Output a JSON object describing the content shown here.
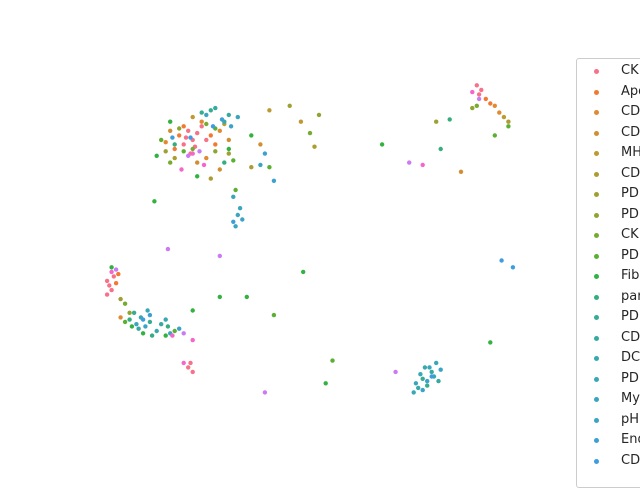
{
  "chart_data": {
    "type": "scatter",
    "title": "",
    "xlabel": "",
    "ylabel": "",
    "axes_visible": false,
    "grid": false,
    "legend_position": "right",
    "series": [
      {
        "name": "CK",
        "color": "#f77189",
        "points": [
          [
            -3.1,
            2.9
          ],
          [
            -3.0,
            2.7
          ],
          [
            -2.9,
            2.85
          ],
          [
            -3.2,
            2.6
          ],
          [
            -2.8,
            3.0
          ],
          [
            -3.05,
            2.4
          ],
          [
            -2.95,
            2.55
          ],
          [
            -3.15,
            2.75
          ],
          [
            -2.7,
            2.7
          ],
          [
            -4.9,
            -0.4
          ],
          [
            -4.8,
            -0.6
          ],
          [
            -4.85,
            -0.5
          ],
          [
            -4.75,
            -0.3
          ],
          [
            -4.9,
            -0.7
          ],
          [
            3.3,
            3.9
          ],
          [
            3.4,
            3.8
          ],
          [
            3.35,
            3.7
          ],
          [
            -3.1,
            -2.3
          ],
          [
            -3.0,
            -2.4
          ],
          [
            -3.05,
            -2.2
          ]
        ]
      },
      {
        "name": "Apo",
        "color": "#f37932",
        "points": [
          [
            -3.3,
            2.8
          ],
          [
            -3.2,
            3.0
          ],
          [
            -2.6,
            2.8
          ],
          [
            -2.5,
            2.6
          ],
          [
            -3.4,
            2.5
          ],
          [
            -4.7,
            -0.45
          ],
          [
            -4.65,
            -0.25
          ],
          [
            3.6,
            3.5
          ],
          [
            3.5,
            3.6
          ]
        ]
      },
      {
        "name": "CD",
        "color": "#e08a32",
        "points": [
          [
            -2.4,
            2.9
          ],
          [
            -2.8,
            3.1
          ],
          [
            -3.6,
            2.65
          ],
          [
            -2.7,
            2.3
          ],
          [
            -4.6,
            -1.2
          ],
          [
            3.7,
            3.45
          ],
          [
            3.8,
            3.3
          ]
        ]
      },
      {
        "name": "CD",
        "color": "#cf8f32",
        "points": [
          [
            -2.9,
            2.2
          ],
          [
            -2.2,
            2.7
          ],
          [
            -3.5,
            2.9
          ],
          [
            -2.4,
            2.05
          ],
          [
            -1.5,
            2.6
          ],
          [
            2.95,
            2.0
          ]
        ]
      },
      {
        "name": "MH",
        "color": "#bd9a32",
        "points": [
          [
            -3.0,
            3.2
          ],
          [
            -2.3,
            3.05
          ],
          [
            -1.3,
            3.35
          ],
          [
            -0.6,
            3.1
          ],
          [
            3.9,
            3.2
          ]
        ]
      },
      {
        "name": "CD",
        "color": "#ad9c31",
        "points": [
          [
            -2.6,
            1.85
          ],
          [
            -1.7,
            2.1
          ],
          [
            -3.4,
            2.3
          ],
          [
            -0.3,
            2.55
          ],
          [
            4.0,
            3.1
          ]
        ]
      },
      {
        "name": "PD",
        "color": "#9ea131",
        "points": [
          [
            -2.2,
            2.4
          ],
          [
            -3.6,
            2.45
          ],
          [
            -4.6,
            -0.8
          ],
          [
            -0.85,
            3.45
          ],
          [
            2.4,
            3.1
          ]
        ]
      },
      {
        "name": "PD",
        "color": "#8ea531",
        "points": [
          [
            -3.3,
            2.95
          ],
          [
            -2.5,
            2.45
          ],
          [
            -4.4,
            -1.1
          ],
          [
            -0.2,
            3.25
          ],
          [
            3.2,
            3.4
          ]
        ]
      },
      {
        "name": "CK",
        "color": "#76ab31",
        "points": [
          [
            -3.0,
            2.5
          ],
          [
            -2.7,
            3.05
          ],
          [
            -3.5,
            2.2
          ],
          [
            -4.5,
            -0.9
          ],
          [
            -0.4,
            2.85
          ],
          [
            3.3,
            3.45
          ]
        ]
      },
      {
        "name": "PD",
        "color": "#5bb031",
        "points": [
          [
            -3.2,
            2.45
          ],
          [
            -2.5,
            2.95
          ],
          [
            -3.7,
            2.7
          ],
          [
            -2.1,
            2.25
          ],
          [
            -4.5,
            -1.3
          ],
          [
            -3.4,
            -1.5
          ],
          [
            -1.3,
            2.1
          ],
          [
            -2.05,
            1.6
          ],
          [
            -1.2,
            -1.15
          ],
          [
            0.1,
            -2.15
          ],
          [
            3.7,
            2.8
          ],
          [
            4.0,
            3.0
          ]
        ]
      },
      {
        "name": "Fib",
        "color": "#32b23e",
        "points": [
          [
            -3.5,
            3.1
          ],
          [
            -2.2,
            2.5
          ],
          [
            -3.8,
            2.35
          ],
          [
            -2.9,
            1.9
          ],
          [
            -1.7,
            2.8
          ],
          [
            -4.8,
            -0.1
          ],
          [
            -4.35,
            -1.4
          ],
          [
            -3.6,
            -1.6
          ],
          [
            -3.0,
            -1.05
          ],
          [
            -1.8,
            -0.75
          ],
          [
            -0.55,
            -0.2
          ],
          [
            -0.05,
            -2.65
          ],
          [
            1.2,
            2.6
          ],
          [
            3.6,
            -1.75
          ],
          [
            -3.85,
            1.35
          ],
          [
            -4.1,
            -1.55
          ],
          [
            -2.4,
            -0.75
          ]
        ]
      },
      {
        "name": "par",
        "color": "#34ae7e",
        "points": [
          [
            -3.4,
            2.6
          ],
          [
            -2.3,
            2.2
          ],
          [
            -4.4,
            -1.25
          ],
          [
            -3.9,
            -1.6
          ],
          [
            -3.55,
            -1.4
          ],
          [
            2.5,
            2.5
          ],
          [
            2.7,
            3.15
          ]
        ]
      },
      {
        "name": "PD",
        "color": "#36ac93",
        "points": [
          [
            -2.8,
            3.3
          ],
          [
            -2.6,
            3.35
          ],
          [
            -4.3,
            -1.1
          ],
          [
            -3.95,
            -1.3
          ],
          [
            2.1,
            -2.55
          ],
          [
            2.2,
            -2.7
          ]
        ]
      },
      {
        "name": "CD",
        "color": "#37aaa0",
        "points": [
          [
            -2.5,
            3.4
          ],
          [
            -2.2,
            3.25
          ],
          [
            -4.2,
            -1.45
          ],
          [
            -3.7,
            -1.35
          ],
          [
            2.3,
            -2.4
          ],
          [
            2.45,
            -2.6
          ]
        ]
      },
      {
        "name": "DC",
        "color": "#38a9ab",
        "points": [
          [
            -2.3,
            3.1
          ],
          [
            -4.15,
            -1.2
          ],
          [
            -3.8,
            -1.5
          ],
          [
            2.0,
            -2.75
          ],
          [
            2.15,
            -2.3
          ],
          [
            2.35,
            -2.5
          ]
        ]
      },
      {
        "name": "PD",
        "color": "#39a7b5",
        "points": [
          [
            -2.0,
            3.2
          ],
          [
            -4.0,
            -1.05
          ],
          [
            -3.6,
            -1.25
          ],
          [
            1.9,
            -2.85
          ],
          [
            2.05,
            -2.45
          ],
          [
            2.4,
            -2.2
          ],
          [
            -2.1,
            1.45
          ]
        ]
      },
      {
        "name": "My",
        "color": "#3aa5be",
        "points": [
          [
            -2.7,
            3.25
          ],
          [
            -4.25,
            -1.35
          ],
          [
            -3.5,
            -1.55
          ],
          [
            1.95,
            -2.65
          ],
          [
            2.25,
            -2.3
          ],
          [
            -1.95,
            1.2
          ],
          [
            -2.0,
            1.05
          ],
          [
            -1.5,
            2.15
          ]
        ]
      },
      {
        "name": "pH",
        "color": "#3ba3c8",
        "points": [
          [
            -2.15,
            3.0
          ],
          [
            -4.05,
            -1.4
          ],
          [
            -3.3,
            -1.45
          ],
          [
            2.1,
            -2.8
          ],
          [
            2.5,
            -2.35
          ],
          [
            -1.9,
            0.95
          ],
          [
            -2.05,
            0.8
          ]
        ]
      },
      {
        "name": "End",
        "color": "#3da0d3",
        "points": [
          [
            -2.35,
            3.15
          ],
          [
            -3.95,
            -1.15
          ],
          [
            2.2,
            -2.6
          ],
          [
            -1.4,
            2.4
          ],
          [
            -1.2,
            1.8
          ],
          [
            -2.1,
            0.9
          ]
        ]
      },
      {
        "name": "CD",
        "color": "#3f9cdf",
        "points": [
          [
            -2.55,
            3.0
          ],
          [
            -3.05,
            2.75
          ],
          [
            -3.45,
            2.75
          ],
          [
            -4.1,
            -1.25
          ],
          [
            2.3,
            -2.5
          ],
          [
            3.85,
            0.05
          ],
          [
            4.1,
            -0.1
          ]
        ]
      },
      {
        "name": "",
        "color": "#cc7af4",
        "points": [
          [
            -3.1,
            2.35
          ],
          [
            -2.85,
            2.45
          ],
          [
            -4.7,
            -0.15
          ],
          [
            -3.2,
            -1.55
          ],
          [
            -1.4,
            -2.85
          ],
          [
            1.5,
            -2.4
          ],
          [
            1.8,
            2.2
          ],
          [
            3.35,
            3.6
          ],
          [
            -2.4,
            0.15
          ],
          [
            -3.55,
            0.3
          ]
        ]
      },
      {
        "name": "",
        "color": "#f565cc",
        "points": [
          [
            -3.0,
            2.4
          ],
          [
            -2.75,
            2.15
          ],
          [
            -3.25,
            2.05
          ],
          [
            -4.8,
            -0.2
          ],
          [
            -3.45,
            -1.6
          ],
          [
            -3.2,
            -2.2
          ],
          [
            2.1,
            2.15
          ],
          [
            3.2,
            3.75
          ],
          [
            -3.0,
            -1.7
          ]
        ]
      }
    ],
    "xlim": [
      -5.5,
      5.5
    ],
    "ylim": [
      -3.5,
      4.5
    ]
  }
}
